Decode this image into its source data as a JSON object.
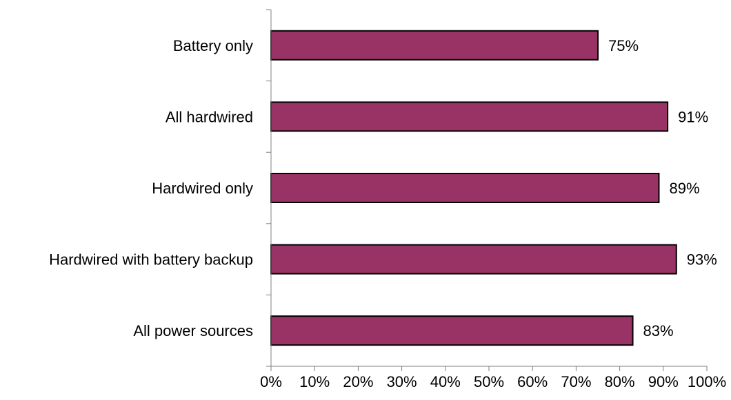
{
  "chart_data": {
    "type": "bar",
    "orientation": "horizontal",
    "categories": [
      "Battery only",
      "All hardwired",
      "Hardwired only",
      "Hardwired with battery backup",
      "All power sources"
    ],
    "values": [
      75,
      91,
      89,
      93,
      83
    ],
    "data_labels": [
      "75%",
      "91%",
      "89%",
      "93%",
      "83%"
    ],
    "xlim": [
      0,
      100
    ],
    "x_ticks": [
      0,
      10,
      20,
      30,
      40,
      50,
      60,
      70,
      80,
      90,
      100
    ],
    "x_tick_labels": [
      "0%",
      "10%",
      "20%",
      "30%",
      "40%",
      "50%",
      "60%",
      "70%",
      "80%",
      "90%",
      "100%"
    ],
    "title": "",
    "xlabel": "",
    "ylabel": "",
    "grid": false,
    "legend": "none",
    "bar_color": "#993366",
    "bar_edge_color": "#000000"
  }
}
